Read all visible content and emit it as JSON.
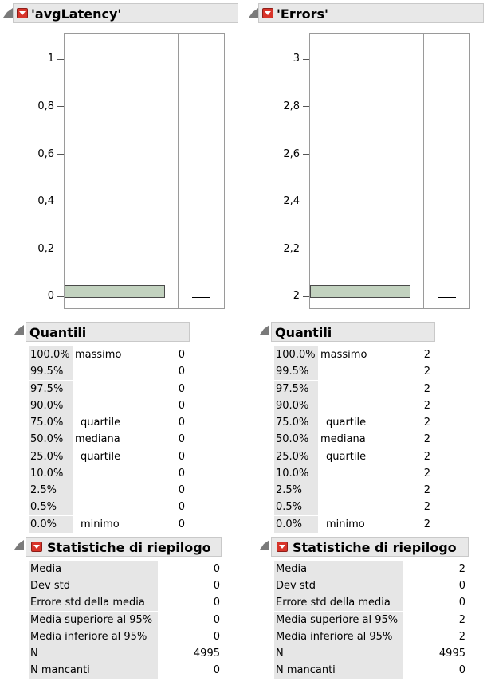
{
  "panels": [
    {
      "title": "'avgLatency'",
      "y_ticks": [
        "1",
        "0,8",
        "0,6",
        "0,4",
        "0,2",
        "0"
      ],
      "quantiles_title": "Quantili",
      "quantiles": [
        {
          "pct": "100.0%",
          "label": "massimo",
          "value": "0"
        },
        {
          "pct": "99.5%",
          "label": "",
          "value": "0"
        },
        {
          "pct": "97.5%",
          "label": "",
          "value": "0"
        },
        {
          "pct": "90.0%",
          "label": "",
          "value": "0"
        },
        {
          "pct": "75.0%",
          "label": "quartile",
          "value": "0"
        },
        {
          "pct": "50.0%",
          "label": "mediana",
          "value": "0"
        },
        {
          "pct": "25.0%",
          "label": "quartile",
          "value": "0"
        },
        {
          "pct": "10.0%",
          "label": "",
          "value": "0"
        },
        {
          "pct": "2.5%",
          "label": "",
          "value": "0"
        },
        {
          "pct": "0.5%",
          "label": "",
          "value": "0"
        },
        {
          "pct": "0.0%",
          "label": "minimo",
          "value": "0"
        }
      ],
      "summary_title": "Statistiche di riepilogo",
      "summary": [
        {
          "label": "Media",
          "value": "0"
        },
        {
          "label": "Dev std",
          "value": "0"
        },
        {
          "label": "Errore std della media",
          "value": "0"
        },
        {
          "label": "Media superiore al 95%",
          "value": "0"
        },
        {
          "label": "Media inferiore al 95%",
          "value": "0"
        },
        {
          "label": "N",
          "value": "4995"
        },
        {
          "label": "N mancanti",
          "value": "0"
        }
      ]
    },
    {
      "title": "'Errors'",
      "y_ticks": [
        "3",
        "2,8",
        "2,6",
        "2,4",
        "2,2",
        "2"
      ],
      "quantiles_title": "Quantili",
      "quantiles": [
        {
          "pct": "100.0%",
          "label": "massimo",
          "value": "2"
        },
        {
          "pct": "99.5%",
          "label": "",
          "value": "2"
        },
        {
          "pct": "97.5%",
          "label": "",
          "value": "2"
        },
        {
          "pct": "90.0%",
          "label": "",
          "value": "2"
        },
        {
          "pct": "75.0%",
          "label": "quartile",
          "value": "2"
        },
        {
          "pct": "50.0%",
          "label": "mediana",
          "value": "2"
        },
        {
          "pct": "25.0%",
          "label": "quartile",
          "value": "2"
        },
        {
          "pct": "10.0%",
          "label": "",
          "value": "2"
        },
        {
          "pct": "2.5%",
          "label": "",
          "value": "2"
        },
        {
          "pct": "0.5%",
          "label": "",
          "value": "2"
        },
        {
          "pct": "0.0%",
          "label": "minimo",
          "value": "2"
        }
      ],
      "summary_title": "Statistiche di riepilogo",
      "summary": [
        {
          "label": "Media",
          "value": "2"
        },
        {
          "label": "Dev std",
          "value": "0"
        },
        {
          "label": "Errore std della media",
          "value": "0"
        },
        {
          "label": "Media superiore al 95%",
          "value": "2"
        },
        {
          "label": "Media inferiore al 95%",
          "value": "2"
        },
        {
          "label": "N",
          "value": "4995"
        },
        {
          "label": "N mancanti",
          "value": "0"
        }
      ]
    }
  ],
  "colors": {
    "bar_fill": "#c2d2bf",
    "menu_button": "#d8342a",
    "header_bg": "#e8e8e8"
  }
}
